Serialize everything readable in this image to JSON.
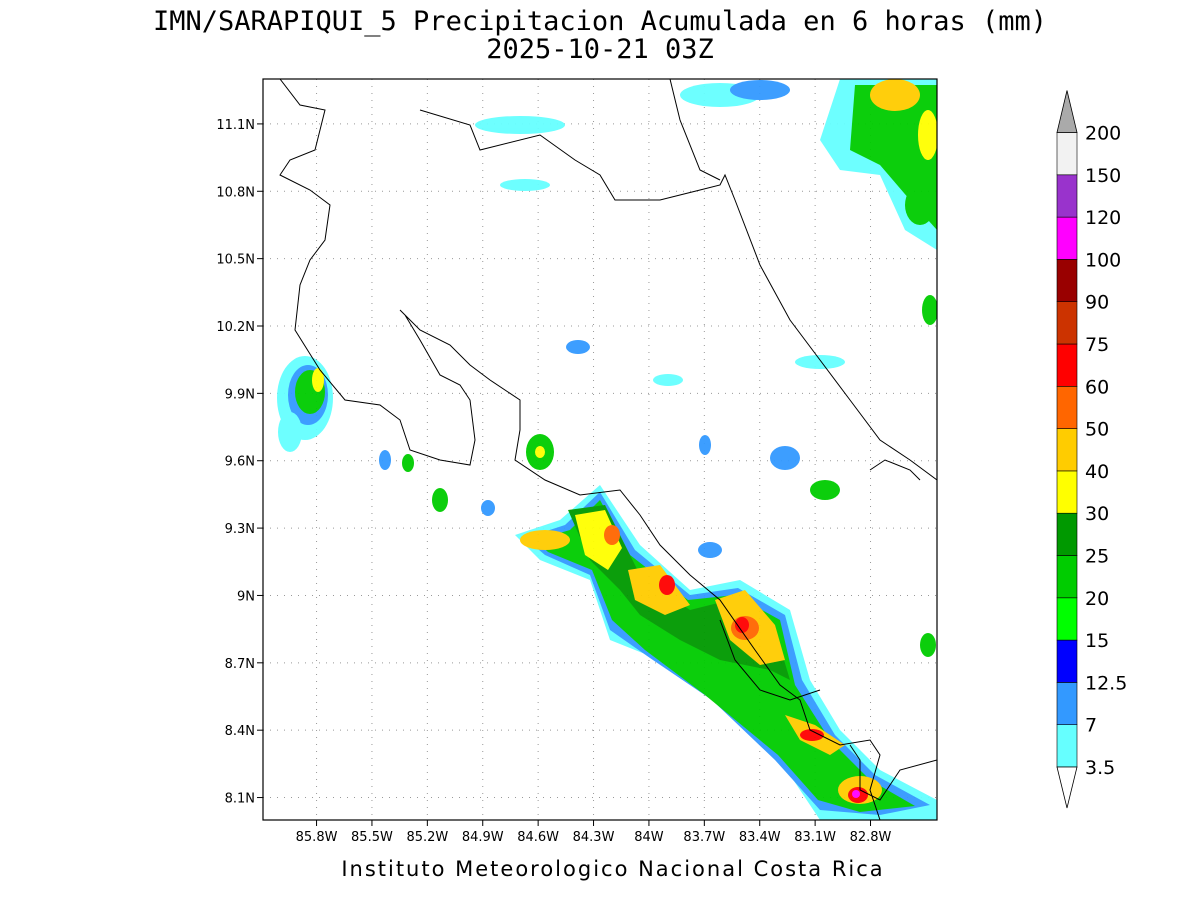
{
  "map": {
    "title": "IMN/SARAPIQUI_5 Precipitacion Acumulada en 6 horas (mm)",
    "subtitle": "2025-10-21 03Z",
    "footer": "Instituto Meteorologico Nacional Costa Rica",
    "xlim": [
      -86.09,
      -82.44
    ],
    "ylim": [
      8.0,
      11.3
    ],
    "xticks": [
      {
        "value": -85.8,
        "label": "85.8W"
      },
      {
        "value": -85.5,
        "label": "85.5W"
      },
      {
        "value": -85.2,
        "label": "85.2W"
      },
      {
        "value": -84.9,
        "label": "84.9W"
      },
      {
        "value": -84.6,
        "label": "84.6W"
      },
      {
        "value": -84.3,
        "label": "84.3W"
      },
      {
        "value": -84.0,
        "label": "84W"
      },
      {
        "value": -83.7,
        "label": "83.7W"
      },
      {
        "value": -83.4,
        "label": "83.4W"
      },
      {
        "value": -83.1,
        "label": "83.1W"
      },
      {
        "value": -82.8,
        "label": "82.8W"
      }
    ],
    "yticks": [
      {
        "value": 8.1,
        "label": "8.1N"
      },
      {
        "value": 8.4,
        "label": "8.4N"
      },
      {
        "value": 8.7,
        "label": "8.7N"
      },
      {
        "value": 9.0,
        "label": "9N"
      },
      {
        "value": 9.3,
        "label": "9.3N"
      },
      {
        "value": 9.6,
        "label": "9.6N"
      },
      {
        "value": 9.9,
        "label": "9.9N"
      },
      {
        "value": 10.2,
        "label": "10.2N"
      },
      {
        "value": 10.5,
        "label": "10.5N"
      },
      {
        "value": 10.8,
        "label": "10.8N"
      },
      {
        "value": 11.1,
        "label": "11.1N"
      }
    ],
    "grid": true,
    "colorbar": {
      "levels": [
        3.5,
        7,
        12.5,
        15,
        20,
        25,
        30,
        40,
        50,
        60,
        75,
        90,
        100,
        120,
        150,
        200
      ],
      "colors": [
        "#66ffff",
        "#3399ff",
        "#0000ff",
        "#00ff00",
        "#00cc00",
        "#009900",
        "#ffff00",
        "#ffcc00",
        "#ff6600",
        "#ff0000",
        "#cc3300",
        "#990000",
        "#ff00ff",
        "#9933cc",
        "#f2f2f2"
      ],
      "under_color": "#ffffff",
      "over_color": "#aaaaaa"
    }
  }
}
